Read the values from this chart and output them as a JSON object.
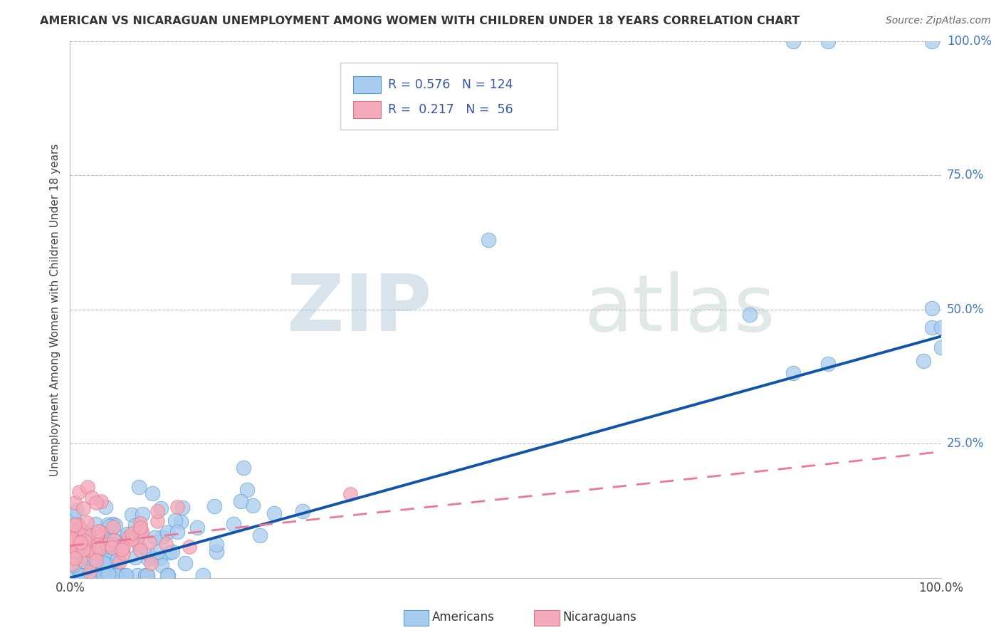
{
  "title": "AMERICAN VS NICARAGUAN UNEMPLOYMENT AMONG WOMEN WITH CHILDREN UNDER 18 YEARS CORRELATION CHART",
  "source": "Source: ZipAtlas.com",
  "ylabel": "Unemployment Among Women with Children Under 18 years",
  "xlim": [
    0.0,
    1.0
  ],
  "ylim": [
    0.0,
    1.0
  ],
  "watermark_zip": "ZIP",
  "watermark_atlas": "atlas",
  "american_color": "#A8CCEE",
  "american_edge_color": "#5599CC",
  "nicaraguan_color": "#F4AABB",
  "nicaraguan_edge_color": "#DD7788",
  "american_line_color": "#1155AA",
  "nicaraguan_line_color": "#EE7799",
  "background_color": "#FFFFFF",
  "grid_color": "#BBBBBB",
  "label_color": "#4477BB",
  "title_color": "#333333",
  "source_color": "#666666",
  "american_line": {
    "x0": 0.0,
    "x1": 1.0,
    "y0": 0.0,
    "y1": 0.45
  },
  "nicaraguan_line": {
    "x0": 0.0,
    "x1": 1.0,
    "y0": 0.06,
    "y1": 0.235
  }
}
